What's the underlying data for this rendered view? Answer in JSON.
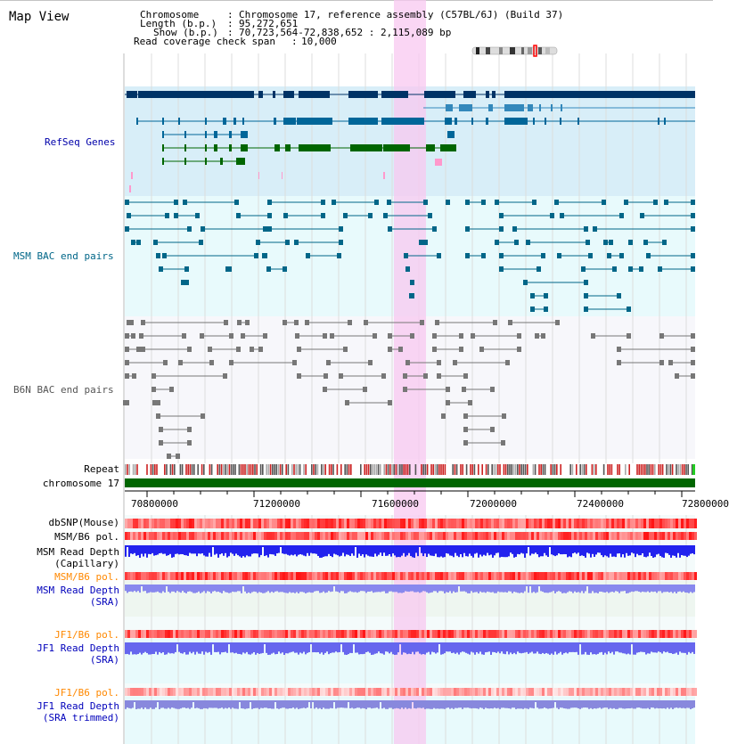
{
  "title": "Map View",
  "header": {
    "chromosome_label": "Chromosome",
    "chromosome_value": "Chromosome 17, reference assembly (C57BL/6J) (Build 37)",
    "length_label": "Length (b.p.)",
    "length_value": "95,272,651",
    "show_label": "Show (b.p.)",
    "show_value": "70,723,564-72,838,652 : 2,115,089 bp",
    "coverage_label": "Read coverage check span",
    "coverage_value": "10,000"
  },
  "tracks": {
    "refseq": "RefSeq Genes",
    "msm_bac": "MSM BAC end pairs",
    "b6n_bac": "B6N BAC end pairs",
    "repeat": "Repeat",
    "chromosome": "chromosome 17",
    "dbsnp": "dbSNP(Mouse)",
    "msm_b6_pol_1": "MSM/B6 pol.",
    "msm_read_depth_cap": "MSM Read Depth",
    "msm_read_depth_cap_sub": "(Capillary)",
    "msm_b6_pol_2": "MSM/B6 pol.",
    "msm_read_depth_sra": "MSM Read Depth",
    "msm_read_depth_sra_sub": "(SRA)",
    "jf1_b6_pol_1": "JF1/B6 pol.",
    "jf1_read_depth_sra": "JF1 Read Depth",
    "jf1_read_depth_sra_sub": "(SRA)",
    "jf1_b6_pol_2": "JF1/B6 pol.",
    "jf1_read_depth_trim": "JF1 Read Depth",
    "jf1_read_depth_trim_sub": "(SRA trimmed)"
  },
  "axis": {
    "ticks": [
      "70800000",
      "71200000",
      "71600000",
      "72000000",
      "72400000",
      "72800000"
    ]
  },
  "colors": {
    "refseq_bg": "#d8eef8",
    "bac_bg": "#e8fafc",
    "highlight": "#f8c8f0",
    "refseq_label": "#0000aa",
    "msm_label": "#006688",
    "orange_label": "#ff8800",
    "blue_label": "#0000bb",
    "chromosome_bar": "#006600",
    "depth_blue": "#0000ee"
  }
}
